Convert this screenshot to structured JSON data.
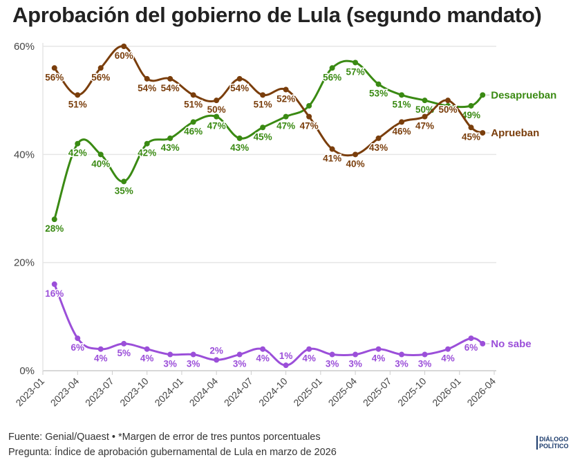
{
  "title": "Aprobación del gobierno de Lula (segundo mandato)",
  "footer": {
    "source": "Fuente: Genial/Quaest • *Margen de error de tres puntos porcentuales",
    "question": "Pregunta: Índice de aprobación gubernamental de Lula en marzo de 2026"
  },
  "logo": {
    "line1": "DIÁLOGO",
    "line2": "POLÍTICO"
  },
  "chart_data": {
    "type": "line",
    "title": "Aprobación del gobierno de Lula (segundo mandato)",
    "xlabel": "",
    "ylabel": "",
    "x_ticks": [
      "2023-01",
      "2023-04",
      "2023-07",
      "2023-10",
      "2024-01",
      "2024-04",
      "2024-07",
      "2024-10",
      "2025-01",
      "2025-04",
      "2025-07",
      "2025-10",
      "2026-01",
      "2026-04"
    ],
    "y_ticks": [
      "0%",
      "20%",
      "40%",
      "60%"
    ],
    "ylim": [
      0,
      60
    ],
    "grid": true,
    "legend": "end-of-line labels",
    "x": [
      "2023-02",
      "2023-04",
      "2023-06",
      "2023-08",
      "2023-10",
      "2023-12",
      "2024-02",
      "2024-04",
      "2024-06",
      "2024-08",
      "2024-10",
      "2024-12",
      "2025-02",
      "2025-04",
      "2025-06",
      "2025-08",
      "2025-10",
      "2025-12",
      "2026-02",
      "2026-03"
    ],
    "series": [
      {
        "name": "Desaprueban",
        "color": "#3a8a13",
        "values": [
          28,
          42,
          40,
          35,
          42,
          43,
          46,
          47,
          43,
          45,
          47,
          49,
          56,
          57,
          53,
          51,
          50,
          49,
          49,
          51
        ],
        "labeled": [
          1,
          1,
          1,
          1,
          1,
          1,
          1,
          1,
          1,
          1,
          1,
          0,
          1,
          1,
          1,
          1,
          1,
          0,
          1,
          0
        ]
      },
      {
        "name": "Aprueban",
        "color": "#7a3e0c",
        "values": [
          56,
          51,
          56,
          60,
          54,
          54,
          51,
          50,
          54,
          51,
          52,
          47,
          41,
          40,
          43,
          46,
          47,
          50,
          45,
          44
        ],
        "labeled": [
          1,
          1,
          1,
          1,
          1,
          1,
          1,
          1,
          1,
          1,
          1,
          1,
          1,
          1,
          1,
          1,
          1,
          1,
          1,
          0
        ]
      },
      {
        "name": "No sabe",
        "color": "#9b4fd9",
        "values": [
          16,
          6,
          4,
          5,
          4,
          3,
          3,
          2,
          3,
          4,
          1,
          4,
          3,
          3,
          4,
          3,
          3,
          4,
          6,
          5
        ],
        "labeled": [
          1,
          1,
          1,
          1,
          1,
          1,
          1,
          1,
          1,
          1,
          1,
          1,
          1,
          1,
          1,
          1,
          1,
          1,
          1,
          0
        ]
      }
    ]
  }
}
